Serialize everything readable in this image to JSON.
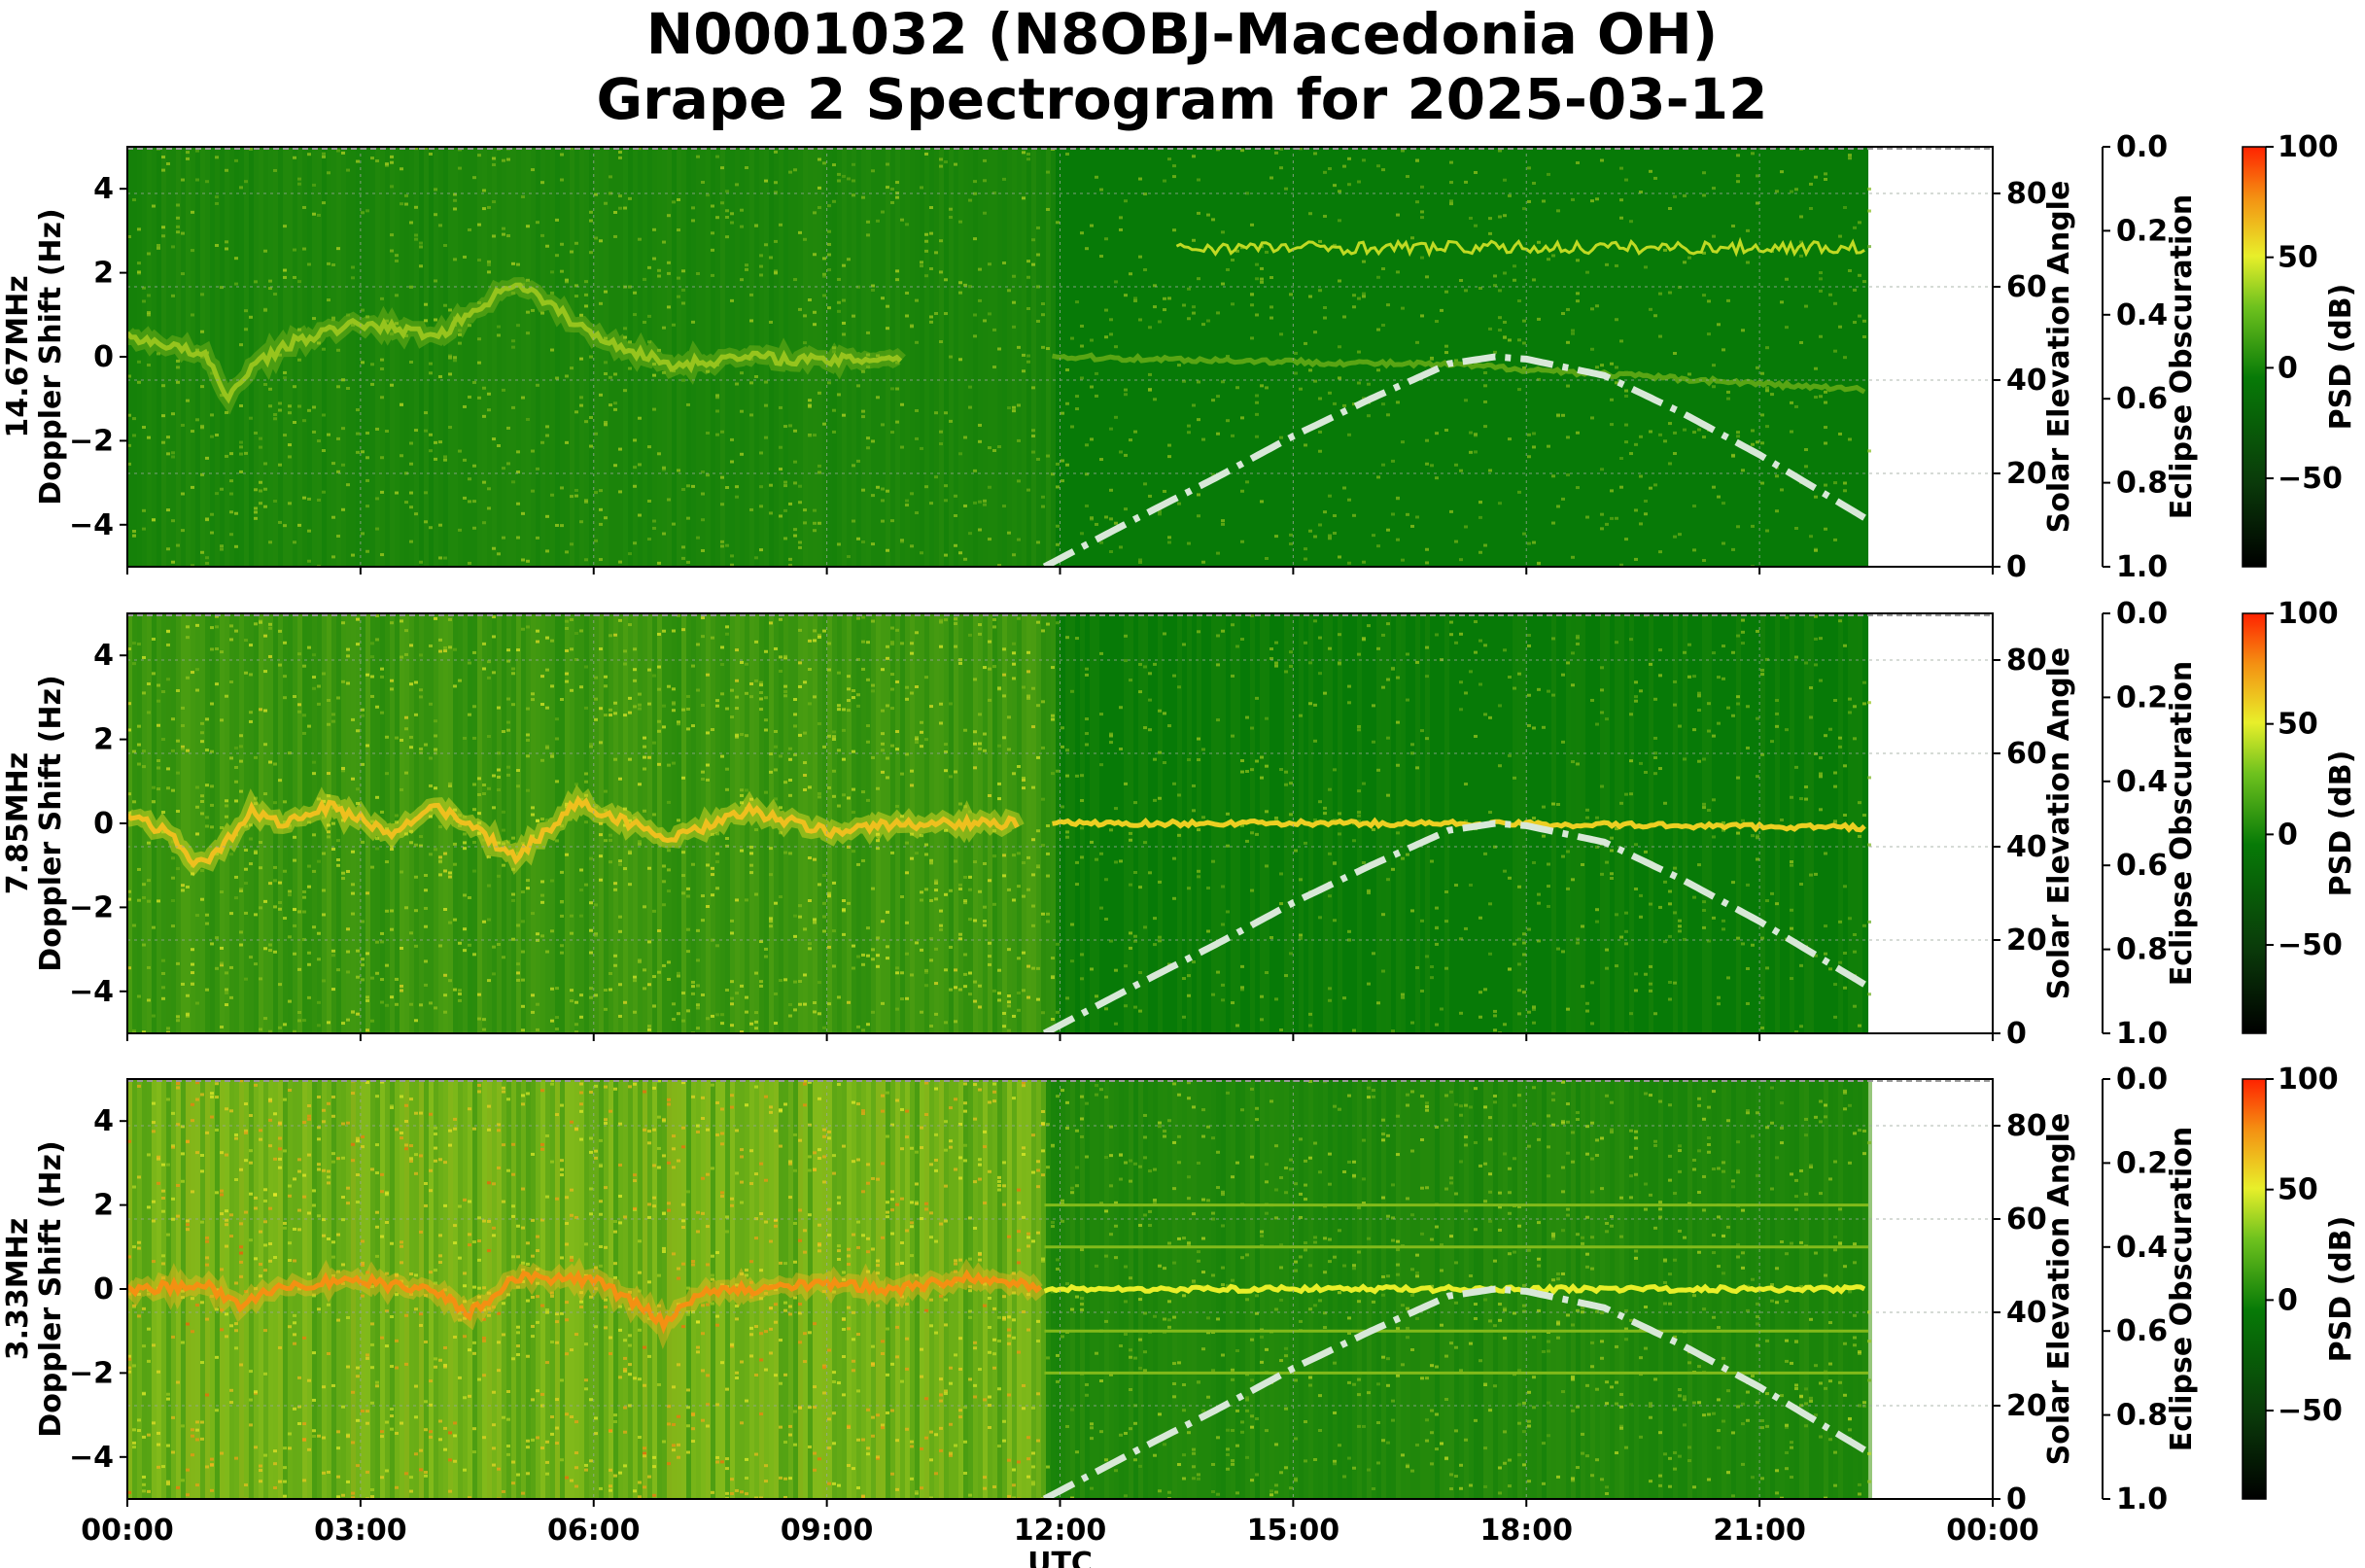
{
  "title_line1": "N0001032 (N8OBJ-Macedonia OH)",
  "title_line2": "Grape 2 Spectrogram for 2025-03-12",
  "colors": {
    "spec_green": "#077a07",
    "spec_yellow": "#e8ef2a",
    "spec_orange": "#f49012",
    "spec_red": "#ff2200",
    "elevation_curve": "#d8e8d8",
    "grid": "#9aa69a"
  },
  "chart_data": [
    {
      "type": "heatmap",
      "panel": "14.67MHz",
      "ylabel_line1": "14.67MHz",
      "ylabel_line2": "Doppler Shift (Hz)",
      "xlabel": "UTC",
      "xlim_hours": [
        0,
        24
      ],
      "data_end_hour": 22.4,
      "ylim": [
        -5,
        5
      ],
      "yticks": [
        "4",
        "2",
        "0",
        "−2",
        "−4"
      ],
      "ytick_values": [
        4,
        2,
        0,
        -2,
        -4
      ],
      "xticks": [
        "00:00",
        "03:00",
        "06:00",
        "09:00",
        "12:00",
        "15:00",
        "18:00",
        "21:00",
        "00:00"
      ],
      "right_axis": {
        "label": "Solar Elevation Angle",
        "ylim": [
          0,
          90
        ],
        "ticks": [
          "0",
          "20",
          "40",
          "60",
          "80"
        ],
        "tick_values": [
          0,
          20,
          40,
          60,
          80
        ]
      },
      "eclipse_axis": {
        "label": "Eclipse Obscuration",
        "ylim": [
          1.0,
          0.0
        ],
        "ticks": [
          "0.0",
          "0.2",
          "0.4",
          "0.6",
          "0.8",
          "1.0"
        ],
        "tick_values": [
          0.0,
          0.2,
          0.4,
          0.6,
          0.8,
          1.0
        ]
      },
      "colorbar": {
        "label": "PSD (dB)",
        "range": [
          -90,
          100
        ],
        "ticks": [
          "100",
          "50",
          "0",
          "−50"
        ],
        "tick_values": [
          100,
          50,
          0,
          -50
        ]
      },
      "noise_level": 0.12,
      "day_noise": 0.03,
      "trace": {
        "hours": [
          0.0,
          0.5,
          1.0,
          1.3,
          1.6,
          2.2,
          3.0,
          4.0,
          5.0,
          6.0,
          7.0,
          8.0,
          9.0,
          10.0
        ],
        "doppler": [
          0.5,
          0.3,
          0.0,
          -1.0,
          -0.2,
          0.4,
          0.8,
          0.5,
          1.8,
          0.5,
          -0.2,
          0.0,
          -0.1,
          0.0
        ],
        "intensity": 0.35
      },
      "day_line": {
        "start": 11.9,
        "end": 22.4,
        "doppler": [
          0.0,
          -0.2,
          -0.8
        ],
        "intensity": 0.2
      },
      "extra_trace": {
        "start": 13.5,
        "end": 22.4,
        "doppler": 2.6,
        "intensity": 0.45
      },
      "solar_elevation": {
        "hours": [
          11.8,
          13.0,
          14.0,
          15.0,
          16.0,
          17.0,
          17.6,
          18.0,
          19.0,
          20.0,
          21.0,
          22.0,
          22.4
        ],
        "degrees": [
          0,
          10.5,
          19,
          28,
          36,
          43.5,
          45,
          44.5,
          41,
          33,
          24,
          14,
          10
        ]
      }
    },
    {
      "type": "heatmap",
      "panel": "7.85MHz",
      "ylabel_line1": "7.85MHz",
      "ylabel_line2": "Doppler Shift (Hz)",
      "xlabel": "UTC",
      "xlim_hours": [
        0,
        24
      ],
      "data_end_hour": 22.4,
      "ylim": [
        -5,
        5
      ],
      "yticks": [
        "4",
        "2",
        "0",
        "−2",
        "−4"
      ],
      "ytick_values": [
        4,
        2,
        0,
        -2,
        -4
      ],
      "xticks": [
        "00:00",
        "03:00",
        "06:00",
        "09:00",
        "12:00",
        "15:00",
        "18:00",
        "21:00",
        "00:00"
      ],
      "right_axis": {
        "label": "Solar Elevation Angle",
        "ylim": [
          0,
          90
        ],
        "ticks": [
          "0",
          "20",
          "40",
          "60",
          "80"
        ],
        "tick_values": [
          0,
          20,
          40,
          60,
          80
        ]
      },
      "eclipse_axis": {
        "label": "Eclipse Obscuration",
        "ylim": [
          1.0,
          0.0
        ],
        "ticks": [
          "0.0",
          "0.2",
          "0.4",
          "0.6",
          "0.8",
          "1.0"
        ],
        "tick_values": [
          0.0,
          0.2,
          0.4,
          0.6,
          0.8,
          1.0
        ]
      },
      "colorbar": {
        "label": "PSD (dB)",
        "range": [
          -90,
          100
        ],
        "ticks": [
          "100",
          "50",
          "0",
          "−50"
        ],
        "tick_values": [
          100,
          50,
          0,
          -50
        ]
      },
      "noise_level": 0.3,
      "day_noise": 0.05,
      "trace": {
        "hours": [
          0.0,
          0.5,
          0.9,
          1.2,
          1.6,
          2.0,
          2.6,
          3.4,
          4.0,
          5.0,
          5.8,
          7.0,
          8.0,
          9.0,
          10.0,
          11.5
        ],
        "doppler": [
          0.2,
          -0.2,
          -1.0,
          -0.6,
          0.3,
          0.0,
          0.4,
          -0.2,
          0.4,
          -0.8,
          0.5,
          -0.4,
          0.3,
          -0.2,
          0.0,
          0.0
        ],
        "intensity": 0.7
      },
      "day_line": {
        "start": 11.9,
        "end": 22.4,
        "doppler": [
          0.0,
          0.0,
          -0.1
        ],
        "intensity": 0.65
      },
      "solar_elevation": {
        "hours": [
          11.8,
          13.0,
          14.0,
          15.0,
          16.0,
          17.0,
          17.6,
          18.0,
          19.0,
          20.0,
          21.0,
          22.0,
          22.4
        ],
        "degrees": [
          0,
          10.5,
          19,
          28,
          36,
          43.5,
          45,
          44.5,
          41,
          33,
          24,
          14,
          10
        ]
      }
    },
    {
      "type": "heatmap",
      "panel": "3.33MHz",
      "ylabel_line1": "3.33MHz",
      "ylabel_line2": "Doppler Shift (Hz)",
      "xlabel": "UTC",
      "xlim_hours": [
        0,
        24
      ],
      "data_end_hour": 22.4,
      "ylim": [
        -5,
        5
      ],
      "yticks": [
        "4",
        "2",
        "0",
        "−2",
        "−4"
      ],
      "ytick_values": [
        4,
        2,
        0,
        -2,
        -4
      ],
      "xticks": [
        "00:00",
        "03:00",
        "06:00",
        "09:00",
        "12:00",
        "15:00",
        "18:00",
        "21:00",
        "00:00"
      ],
      "right_axis": {
        "label": "Solar Elevation Angle",
        "ylim": [
          0,
          90
        ],
        "ticks": [
          "0",
          "20",
          "40",
          "60",
          "80"
        ],
        "tick_values": [
          0,
          20,
          40,
          60,
          80
        ]
      },
      "eclipse_axis": {
        "label": "Eclipse Obscuration",
        "ylim": [
          1.0,
          0.0
        ],
        "ticks": [
          "0.0",
          "0.2",
          "0.4",
          "0.6",
          "0.8",
          "1.0"
        ],
        "tick_values": [
          0.0,
          0.2,
          0.4,
          0.6,
          0.8,
          1.0
        ]
      },
      "colorbar": {
        "label": "PSD (dB)",
        "range": [
          -90,
          100
        ],
        "ticks": [
          "100",
          "50",
          "0",
          "−50"
        ],
        "tick_values": [
          100,
          50,
          0,
          -50
        ]
      },
      "noise_level": 0.6,
      "day_noise": 0.15,
      "trace": {
        "hours": [
          0.0,
          1.0,
          1.4,
          2.0,
          3.0,
          4.0,
          4.4,
          5.0,
          6.0,
          6.5,
          6.9,
          7.5,
          8.0,
          9.0,
          10.0,
          10.8,
          11.8
        ],
        "doppler": [
          0.0,
          0.1,
          -0.4,
          0.1,
          0.2,
          -0.1,
          -0.6,
          0.3,
          0.2,
          -0.3,
          -0.8,
          0.0,
          0.0,
          0.1,
          0.0,
          0.3,
          0.0
        ],
        "intensity": 0.85
      },
      "day_line": {
        "start": 11.8,
        "end": 22.4,
        "doppler": [
          0.0,
          0.0,
          0.0
        ],
        "intensity": 0.55
      },
      "harmonics": [
        1.0,
        2.0,
        -1.0,
        -2.0
      ],
      "solar_elevation": {
        "hours": [
          11.8,
          13.0,
          14.0,
          15.0,
          16.0,
          17.0,
          17.6,
          18.0,
          19.0,
          20.0,
          21.0,
          22.0,
          22.4
        ],
        "degrees": [
          0,
          10.5,
          19,
          28,
          36,
          43.5,
          45,
          44.5,
          41,
          33,
          24,
          14,
          10
        ]
      }
    }
  ]
}
